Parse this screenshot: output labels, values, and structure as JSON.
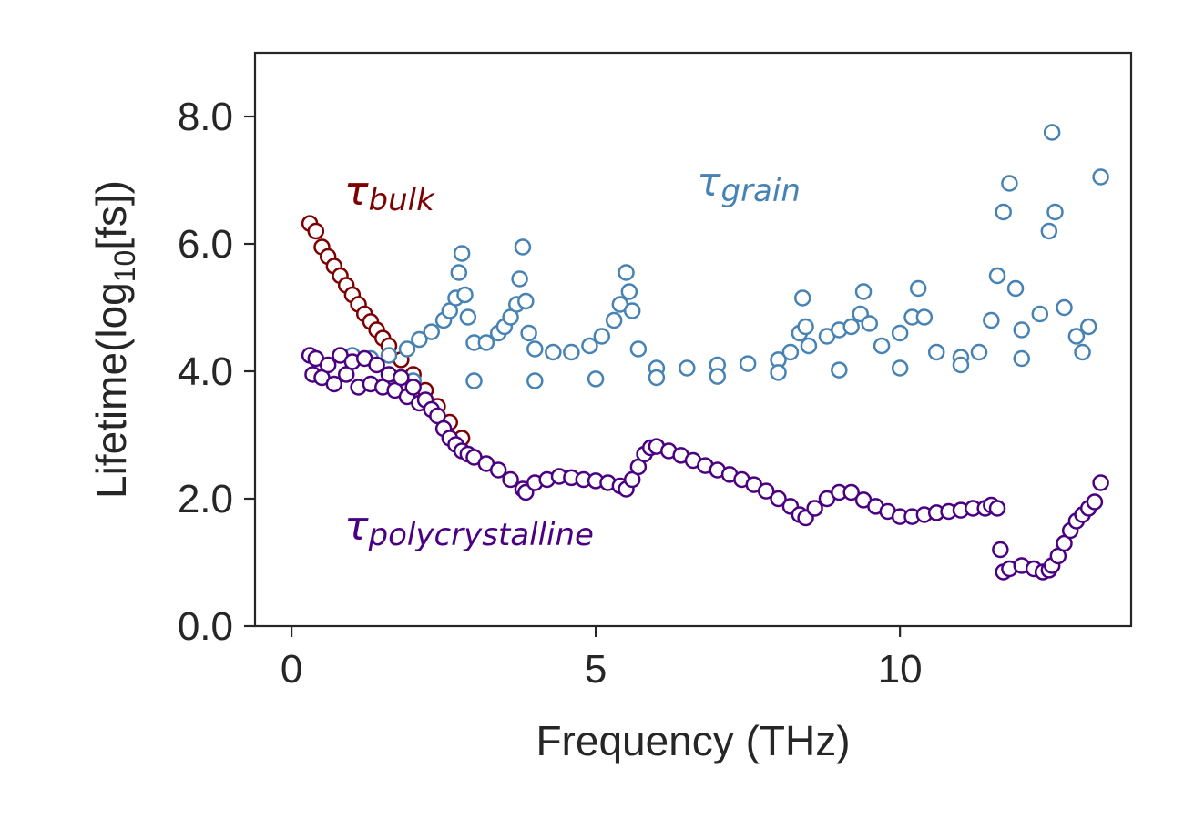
{
  "chart_data": {
    "type": "scatter",
    "xlabel": "Frequency (THz)",
    "ylabel_main": "Lifetime(log",
    "ylabel_sub": "10",
    "ylabel_end": "[fs])",
    "xlim": [
      -0.6,
      13.8
    ],
    "ylim": [
      0.0,
      9.0
    ],
    "xticks": [
      0,
      5,
      10
    ],
    "xtick_labels": [
      "0",
      "5",
      "10"
    ],
    "yticks": [
      0.0,
      2.0,
      4.0,
      6.0,
      8.0
    ],
    "ytick_labels": [
      "0.0",
      "2.0",
      "4.0",
      "6.0",
      "8.0"
    ],
    "grid": false,
    "marker": "open-circle",
    "series": [
      {
        "id": "bulk",
        "name": "τ",
        "name_sub": "bulk",
        "color": "#7f0000",
        "x": [
          0.3,
          0.4,
          0.5,
          0.6,
          0.7,
          0.8,
          0.9,
          1.0,
          1.1,
          1.2,
          1.3,
          1.4,
          1.5,
          1.6,
          1.8,
          2.0,
          2.2,
          2.4,
          2.6,
          2.8
        ],
        "y": [
          6.32,
          6.2,
          5.95,
          5.8,
          5.65,
          5.5,
          5.35,
          5.2,
          5.05,
          4.9,
          4.78,
          4.65,
          4.52,
          4.4,
          4.18,
          3.95,
          3.7,
          3.45,
          3.2,
          2.95
        ]
      },
      {
        "id": "grain",
        "name": "τ",
        "name_sub": "grain",
        "color": "#4682b4",
        "x": [
          1.0,
          1.3,
          1.6,
          1.9,
          2.1,
          2.3,
          2.5,
          2.6,
          2.7,
          2.75,
          2.8,
          2.85,
          2.9,
          3.0,
          3.2,
          3.4,
          3.5,
          3.6,
          3.7,
          3.75,
          3.8,
          3.85,
          3.9,
          4.0,
          4.3,
          4.6,
          4.9,
          5.1,
          5.3,
          5.4,
          5.5,
          5.55,
          5.6,
          5.7,
          6.0,
          6.5,
          7.0,
          7.5,
          8.0,
          8.2,
          8.35,
          8.4,
          8.45,
          8.5,
          8.8,
          9.0,
          9.2,
          9.35,
          9.4,
          9.5,
          9.7,
          10.0,
          10.2,
          10.3,
          10.4,
          10.6,
          11.0,
          11.3,
          11.5,
          11.6,
          11.7,
          11.8,
          11.9,
          12.0,
          12.3,
          12.45,
          12.5,
          12.55,
          12.7,
          12.9,
          13.1,
          13.3,
          2.0,
          3.0,
          4.0,
          5.0,
          6.0,
          7.0,
          8.0,
          9.0,
          10.0,
          11.0,
          12.0,
          13.0
        ],
        "y": [
          4.25,
          4.2,
          4.25,
          4.35,
          4.5,
          4.62,
          4.8,
          4.95,
          5.15,
          5.55,
          5.85,
          5.2,
          4.85,
          4.45,
          4.45,
          4.6,
          4.7,
          4.85,
          5.05,
          5.45,
          5.95,
          5.1,
          4.6,
          4.35,
          4.3,
          4.3,
          4.4,
          4.55,
          4.8,
          5.05,
          5.55,
          5.25,
          4.95,
          4.35,
          4.05,
          4.05,
          4.1,
          4.12,
          4.18,
          4.3,
          4.6,
          5.15,
          4.7,
          4.4,
          4.55,
          4.65,
          4.7,
          4.9,
          5.25,
          4.75,
          4.4,
          4.6,
          4.85,
          5.3,
          4.85,
          4.3,
          4.22,
          4.3,
          4.8,
          5.5,
          6.5,
          6.95,
          5.3,
          4.65,
          4.9,
          6.2,
          7.75,
          6.5,
          5.0,
          4.55,
          4.7,
          7.05,
          3.85,
          3.85,
          3.85,
          3.88,
          3.9,
          3.92,
          3.98,
          4.02,
          4.05,
          4.1,
          4.2,
          4.3
        ]
      },
      {
        "id": "polycrystalline",
        "name": "τ",
        "name_sub": "polycrystalline",
        "color": "#4b0082",
        "x": [
          0.3,
          0.35,
          0.4,
          0.5,
          0.6,
          0.7,
          0.8,
          0.9,
          1.0,
          1.1,
          1.2,
          1.3,
          1.4,
          1.5,
          1.6,
          1.7,
          1.8,
          1.9,
          2.0,
          2.1,
          2.2,
          2.3,
          2.4,
          2.5,
          2.6,
          2.7,
          2.8,
          2.9,
          3.0,
          3.2,
          3.4,
          3.6,
          3.8,
          3.85,
          4.0,
          4.2,
          4.4,
          4.6,
          4.8,
          5.0,
          5.2,
          5.4,
          5.5,
          5.6,
          5.7,
          5.8,
          5.9,
          6.0,
          6.2,
          6.4,
          6.6,
          6.8,
          7.0,
          7.2,
          7.4,
          7.6,
          7.8,
          8.0,
          8.2,
          8.35,
          8.45,
          8.6,
          8.8,
          9.0,
          9.2,
          9.4,
          9.6,
          9.8,
          10.0,
          10.2,
          10.4,
          10.6,
          10.8,
          11.0,
          11.2,
          11.4,
          11.5,
          11.6,
          11.65,
          11.7,
          11.8,
          12.0,
          12.2,
          12.35,
          12.45,
          12.5,
          12.6,
          12.7,
          12.8,
          12.9,
          13.0,
          13.1,
          13.2,
          13.3
        ],
        "y": [
          4.25,
          3.95,
          4.2,
          3.9,
          4.1,
          3.8,
          4.25,
          3.95,
          4.15,
          3.75,
          4.2,
          3.8,
          4.1,
          3.75,
          3.95,
          3.7,
          3.9,
          3.6,
          3.75,
          3.5,
          3.55,
          3.4,
          3.3,
          3.1,
          2.95,
          2.85,
          2.75,
          2.7,
          2.65,
          2.55,
          2.45,
          2.3,
          2.15,
          2.1,
          2.25,
          2.3,
          2.35,
          2.33,
          2.3,
          2.28,
          2.25,
          2.2,
          2.15,
          2.3,
          2.5,
          2.7,
          2.8,
          2.82,
          2.75,
          2.68,
          2.6,
          2.52,
          2.45,
          2.38,
          2.3,
          2.22,
          2.12,
          2.0,
          1.88,
          1.75,
          1.7,
          1.85,
          2.0,
          2.1,
          2.1,
          1.98,
          1.88,
          1.8,
          1.72,
          1.72,
          1.75,
          1.78,
          1.8,
          1.82,
          1.85,
          1.85,
          1.9,
          1.85,
          1.2,
          0.85,
          0.9,
          0.95,
          0.9,
          0.85,
          0.88,
          0.95,
          1.1,
          1.3,
          1.5,
          1.65,
          1.75,
          1.85,
          1.95,
          2.25
        ]
      }
    ]
  }
}
